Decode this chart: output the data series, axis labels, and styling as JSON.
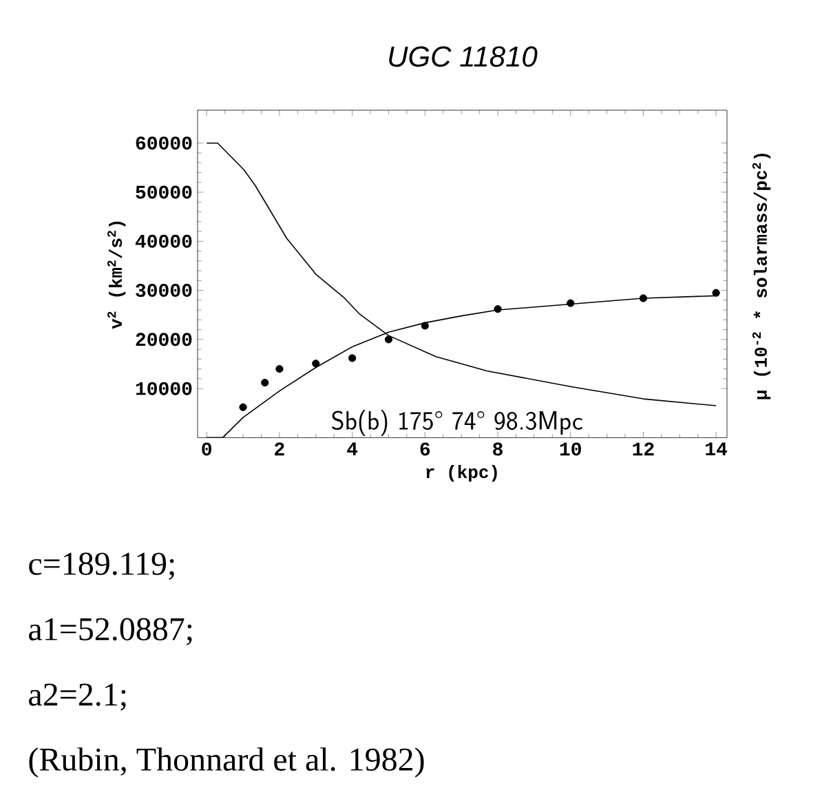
{
  "chart_data": {
    "type": "line",
    "title": "UGC 11810",
    "xlabel": "r (kpc)",
    "ylabel": "v$^{2}$ (km$^{2}$/s$^{2}$)",
    "y2label": "μ (10$^{-2}$ * solarmass/pc$^{2}$)",
    "xlim": [
      -0.25,
      14.3
    ],
    "ylim": [
      0,
      66700
    ],
    "xticks": [
      0,
      2,
      4,
      6,
      8,
      10,
      12,
      14
    ],
    "yticks": [
      10000,
      20000,
      30000,
      40000,
      50000,
      60000
    ],
    "series": [
      {
        "type": "scatter",
        "color": "#000000",
        "marker": "circle",
        "x": [
          1,
          1.6,
          2,
          3,
          4,
          5,
          6,
          8,
          10,
          12,
          14
        ],
        "values": [
          6200,
          11200,
          14000,
          15100,
          16200,
          20000,
          22800,
          26200,
          27400,
          28400,
          29500
        ]
      },
      {
        "type": "line",
        "color": "#000000",
        "x": [
          0,
          0.44,
          1,
          2,
          3,
          4,
          5,
          6,
          7,
          8,
          10,
          12,
          14
        ],
        "values": [
          0,
          0,
          4100,
          9500,
          14300,
          18500,
          21500,
          23400,
          24800,
          26000,
          27200,
          28400,
          28900
        ]
      },
      {
        "type": "line",
        "color": "#000000",
        "x": [
          0,
          0.3,
          1.02,
          1.34,
          2.2,
          3,
          3.79,
          4.2,
          5,
          6.3,
          7.7,
          10,
          12,
          14
        ],
        "values": [
          60000,
          60000,
          54600,
          51300,
          40600,
          33300,
          28400,
          25200,
          20800,
          16500,
          13600,
          10400,
          7900,
          6500
        ]
      }
    ],
    "annotations": [
      "Sb(b) 175° 74° 98.3Mpc",
      "c=189.119;",
      "a1=52.0887;",
      "a2=2.1;",
      "(Rubin, Thonnard et al. 1982)"
    ]
  }
}
